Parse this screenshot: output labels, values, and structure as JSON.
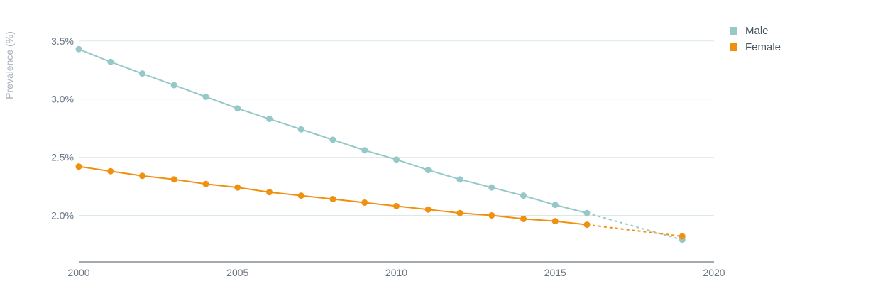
{
  "chart_data": {
    "type": "line",
    "title": "",
    "xlabel": "",
    "ylabel": "Prevalence (%)",
    "xlim": [
      2000,
      2020
    ],
    "ylim": [
      1.6,
      3.7
    ],
    "x_ticks": [
      "2000",
      "2005",
      "2010",
      "2015",
      "2020"
    ],
    "y_ticks": [
      "2.0%",
      "2.5%",
      "3.0%",
      "3.5%"
    ],
    "grid": true,
    "legend_position": "top-right",
    "x": [
      2000,
      2001,
      2002,
      2003,
      2004,
      2005,
      2006,
      2007,
      2008,
      2009,
      2010,
      2011,
      2012,
      2013,
      2014,
      2015,
      2016
    ],
    "series": [
      {
        "name": "Male",
        "color": "#94c9c7",
        "values": [
          3.43,
          3.32,
          3.22,
          3.12,
          3.02,
          2.92,
          2.83,
          2.74,
          2.65,
          2.56,
          2.48,
          2.39,
          2.31,
          2.24,
          2.17,
          2.09,
          2.02
        ],
        "projection": {
          "x": [
            2016,
            2019
          ],
          "values": [
            2.02,
            1.79
          ]
        }
      },
      {
        "name": "Female",
        "color": "#f0900f",
        "values": [
          2.42,
          2.38,
          2.34,
          2.31,
          2.27,
          2.24,
          2.2,
          2.17,
          2.14,
          2.11,
          2.08,
          2.05,
          2.02,
          2.0,
          1.97,
          1.95,
          1.92
        ],
        "projection": {
          "x": [
            2016,
            2019
          ],
          "values": [
            1.92,
            1.82
          ]
        }
      }
    ]
  }
}
